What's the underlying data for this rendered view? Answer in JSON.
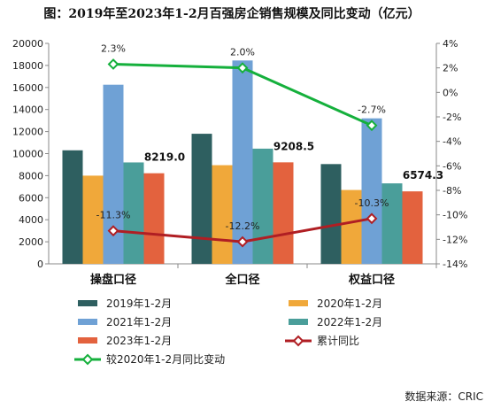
{
  "chart_data": {
    "type": "bar",
    "title": "图：2019年至2023年1-2月百强房企销售规模及同比变动（亿元）",
    "categories": [
      "操盘口径",
      "全口径",
      "权益口径"
    ],
    "series": [
      {
        "name": "2019年1-2月",
        "values": [
          10300,
          11800,
          9050
        ],
        "color": "#2e5f60"
      },
      {
        "name": "2020年1-2月",
        "values": [
          8000,
          8950,
          6700
        ],
        "color": "#f0a83a"
      },
      {
        "name": "2021年1-2月",
        "values": [
          16250,
          18450,
          13200
        ],
        "color": "#6fa1d5"
      },
      {
        "name": "2022年1-2月",
        "values": [
          9200,
          10450,
          7300
        ],
        "color": "#4a9e9a"
      },
      {
        "name": "2023年1-2月",
        "values": [
          8219.0,
          9208.5,
          6574.3
        ],
        "value_labels": [
          "8219.0",
          "9208.5",
          "6574.3"
        ],
        "color": "#e3623e"
      }
    ],
    "line_series": [
      {
        "name": "累计同比",
        "values": [
          -11.3,
          -12.2,
          -10.3
        ],
        "labels": [
          "-11.3%",
          "-12.2%",
          "-10.3%"
        ],
        "color": "#b01e23",
        "marker": "diamond"
      },
      {
        "name": "较2020年1-2月同比变动",
        "values": [
          2.3,
          2.0,
          -2.7
        ],
        "labels": [
          "2.3%",
          "2.0%",
          "-2.7%"
        ],
        "color": "#15b03c",
        "marker": "diamond"
      }
    ],
    "y_left": {
      "min": 0,
      "max": 20000,
      "step": 2000,
      "ticks": [
        "0",
        "2000",
        "4000",
        "6000",
        "8000",
        "10000",
        "12000",
        "14000",
        "16000",
        "18000",
        "20000"
      ]
    },
    "y_right": {
      "min": -14,
      "max": 4,
      "step": 2,
      "ticks": [
        "-14%",
        "-12%",
        "-10%",
        "-8%",
        "-6%",
        "-4%",
        "-2%",
        "0%",
        "2%",
        "4%"
      ]
    },
    "legend_position": "bottom",
    "source": "数据来源：CRIC"
  }
}
